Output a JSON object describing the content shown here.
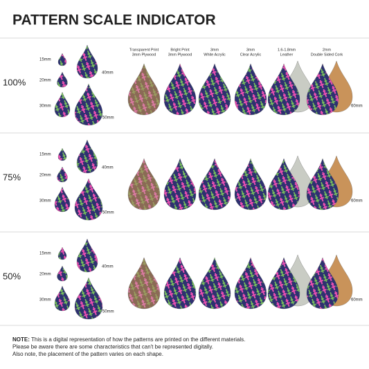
{
  "header": {
    "title": "PATTERN SCALE INDICATOR"
  },
  "materials": [
    {
      "lines": [
        "Transparent Print",
        "3mm Plywood"
      ]
    },
    {
      "lines": [
        "Bright Print",
        "3mm Plywood"
      ]
    },
    {
      "lines": [
        "3mm",
        "White Acrylic"
      ]
    },
    {
      "lines": [
        "3mm",
        "Clear Acrylic"
      ]
    },
    {
      "lines": [
        "1.6-1.8mm",
        "Leather"
      ]
    },
    {
      "lines": [
        "2mm",
        "Double Sided Cork"
      ]
    }
  ],
  "rows": [
    {
      "scale": "100%",
      "sizes": [
        "15mm",
        "20mm",
        "30mm",
        "40mm",
        "50mm"
      ],
      "example": "60mm"
    },
    {
      "scale": "75%",
      "sizes": [
        "15mm",
        "20mm",
        "30mm",
        "40mm",
        "50mm"
      ],
      "example": "60mm"
    },
    {
      "scale": "50%",
      "sizes": [
        "15mm",
        "20mm",
        "30mm",
        "40mm",
        "50mm"
      ],
      "example": "60mm"
    }
  ],
  "note": {
    "label": "NOTE:",
    "lines": [
      "This is a digital representation of how the patterns are printed on the different materials.",
      "Please be aware there are some characteristics that can't be represented digitally.",
      "Also note, the placement of the pattern varies on each shape."
    ]
  }
}
